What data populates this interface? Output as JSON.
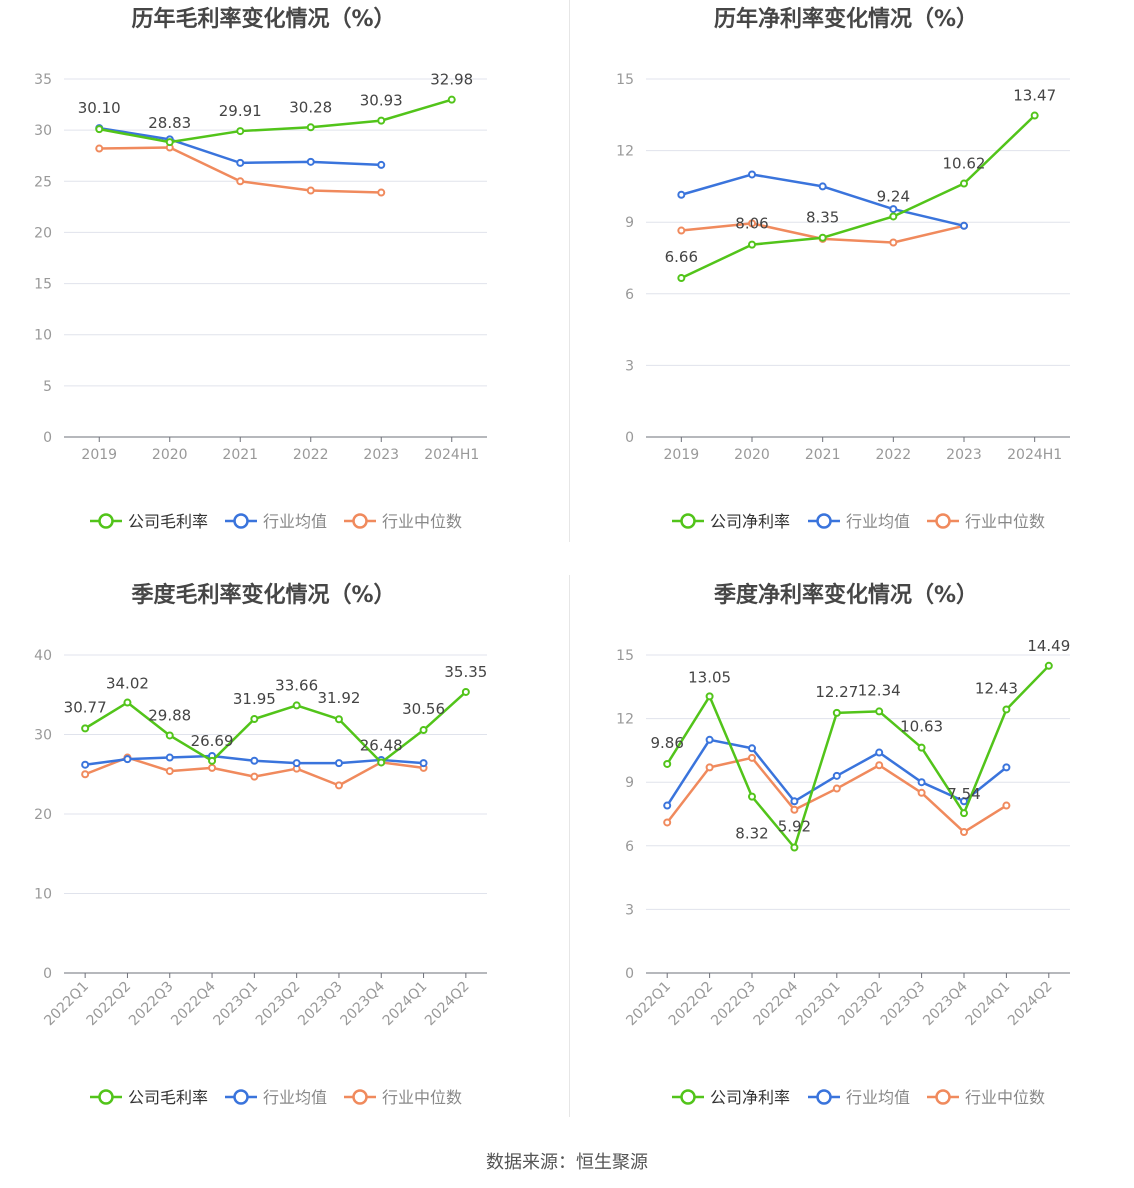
{
  "source_text": "数据来源：恒生聚源",
  "colors": {
    "company": "#52c41a",
    "avg": "#3a74dc",
    "median": "#f08a5d",
    "grid": "#e0e3ec",
    "axis": "#6e7079",
    "tick": "#999999"
  },
  "chart_data": [
    {
      "type": "line",
      "title": "历年毛利率变化情况（%）",
      "categories": [
        "2019",
        "2020",
        "2021",
        "2022",
        "2023",
        "2024H1"
      ],
      "ylim": [
        0,
        35
      ],
      "yticks": [
        0,
        5,
        10,
        15,
        20,
        25,
        30,
        35
      ],
      "grid": true,
      "legend_position": "bottom",
      "series": [
        {
          "name": "公司毛利率",
          "key": "company",
          "values": [
            30.1,
            28.83,
            29.91,
            30.28,
            30.93,
            32.98
          ],
          "labels": [
            "30.10",
            "28.83",
            "29.91",
            "30.28",
            "30.93",
            "32.98"
          ]
        },
        {
          "name": "行业均值",
          "key": "avg",
          "values": [
            30.2,
            29.1,
            26.8,
            26.9,
            26.6,
            null
          ]
        },
        {
          "name": "行业中位数",
          "key": "median",
          "values": [
            28.2,
            28.3,
            25.0,
            24.1,
            23.9,
            null
          ]
        }
      ]
    },
    {
      "type": "line",
      "title": "历年净利率变化情况（%）",
      "categories": [
        "2019",
        "2020",
        "2021",
        "2022",
        "2023",
        "2024H1"
      ],
      "ylim": [
        0,
        15
      ],
      "yticks": [
        0,
        3,
        6,
        9,
        12,
        15
      ],
      "grid": true,
      "legend_position": "bottom",
      "series": [
        {
          "name": "公司净利率",
          "key": "company",
          "values": [
            6.66,
            8.06,
            8.35,
            9.24,
            10.62,
            13.47
          ],
          "labels": [
            "6.66",
            "8.06",
            "8.35",
            "9.24",
            "10.62",
            "13.47"
          ]
        },
        {
          "name": "行业均值",
          "key": "avg",
          "values": [
            10.15,
            11.0,
            10.5,
            9.55,
            8.85,
            null
          ]
        },
        {
          "name": "行业中位数",
          "key": "median",
          "values": [
            8.65,
            8.95,
            8.3,
            8.15,
            8.85,
            null
          ]
        }
      ]
    },
    {
      "type": "line",
      "title": "季度毛利率变化情况（%）",
      "categories": [
        "2022Q1",
        "2022Q2",
        "2022Q3",
        "2022Q4",
        "2023Q1",
        "2023Q2",
        "2023Q3",
        "2023Q4",
        "2024Q1",
        "2024Q2"
      ],
      "ylim": [
        0,
        40
      ],
      "yticks": [
        0,
        10,
        20,
        30,
        40
      ],
      "grid": true,
      "legend_position": "bottom",
      "series": [
        {
          "name": "公司毛利率",
          "key": "company",
          "values": [
            30.77,
            34.02,
            29.88,
            26.69,
            31.95,
            33.66,
            31.92,
            26.48,
            30.56,
            35.35
          ],
          "labels": [
            "30.77",
            "34.02",
            "29.88",
            "26.69",
            "31.95",
            "33.66",
            "31.92",
            "26.48",
            "30.56",
            "35.35"
          ]
        },
        {
          "name": "行业均值",
          "key": "avg",
          "values": [
            26.2,
            26.9,
            27.1,
            27.3,
            26.7,
            26.4,
            26.4,
            26.8,
            26.4,
            null
          ]
        },
        {
          "name": "行业中位数",
          "key": "median",
          "values": [
            25.0,
            27.1,
            25.4,
            25.8,
            24.7,
            25.7,
            23.6,
            26.5,
            25.8,
            null
          ]
        }
      ]
    },
    {
      "type": "line",
      "title": "季度净利率变化情况（%）",
      "categories": [
        "2022Q1",
        "2022Q2",
        "2022Q3",
        "2022Q4",
        "2023Q1",
        "2023Q2",
        "2023Q3",
        "2023Q4",
        "2024Q1",
        "2024Q2"
      ],
      "ylim": [
        0,
        15
      ],
      "yticks": [
        0,
        3,
        6,
        9,
        12,
        15
      ],
      "grid": true,
      "legend_position": "bottom",
      "series": [
        {
          "name": "公司净利率",
          "key": "company",
          "values": [
            9.86,
            13.05,
            8.32,
            5.92,
            12.27,
            12.34,
            10.63,
            7.54,
            12.43,
            14.49
          ],
          "labels": [
            "9.86",
            "13.05",
            "8.32",
            "5.92",
            "12.27",
            "12.34",
            "10.63",
            "7.54",
            "12.43",
            "14.49"
          ]
        },
        {
          "name": "行业均值",
          "key": "avg",
          "values": [
            7.9,
            11.0,
            10.6,
            8.1,
            9.3,
            10.4,
            9.0,
            8.1,
            9.7,
            null
          ]
        },
        {
          "name": "行业中位数",
          "key": "median",
          "values": [
            7.1,
            9.7,
            10.15,
            7.7,
            8.7,
            9.8,
            8.5,
            6.65,
            7.9,
            null
          ]
        }
      ]
    }
  ]
}
